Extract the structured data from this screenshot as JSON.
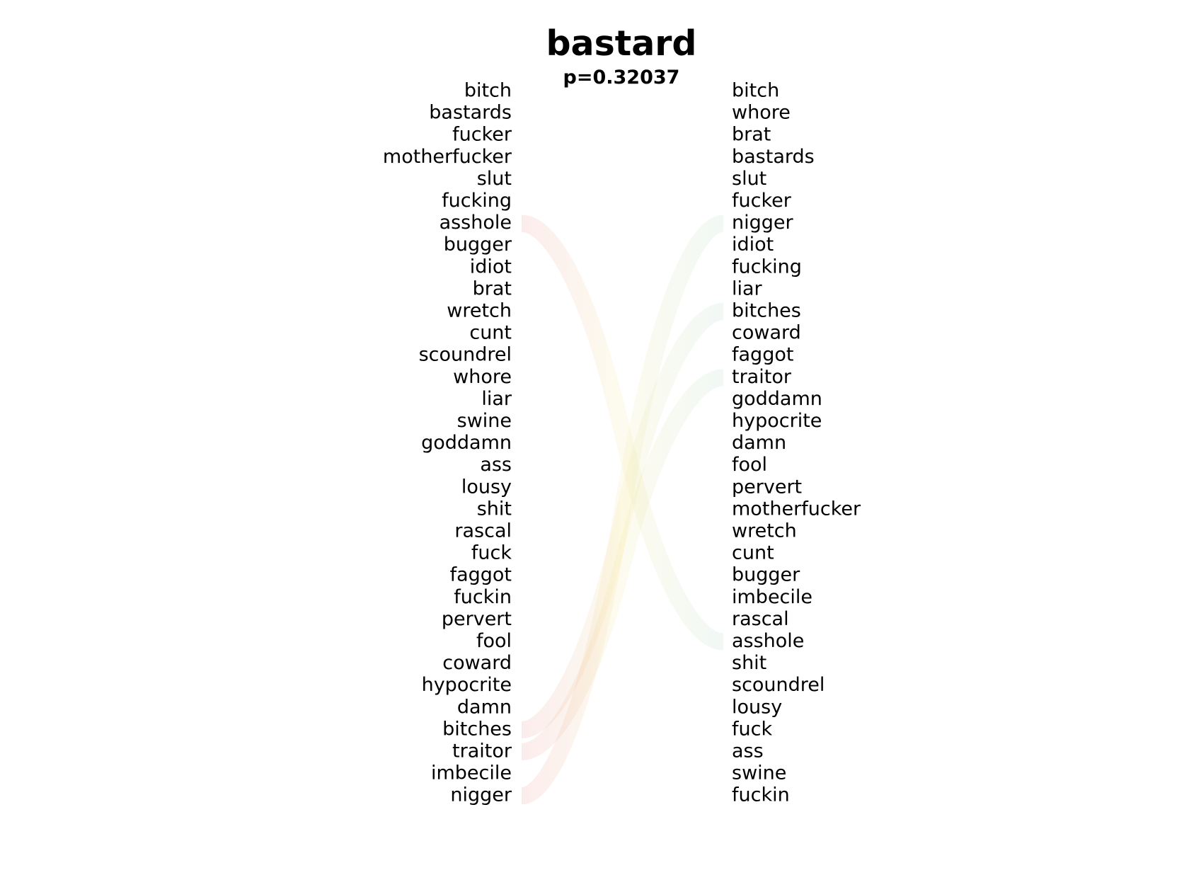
{
  "chart_data": {
    "type": "bump",
    "title": "bastard",
    "subtitle": "p=0.32037",
    "left_ranking": [
      "bitch",
      "bastards",
      "fucker",
      "motherfucker",
      "slut",
      "fucking",
      "asshole",
      "bugger",
      "idiot",
      "brat",
      "wretch",
      "cunt",
      "scoundrel",
      "whore",
      "liar",
      "swine",
      "goddamn",
      "ass",
      "lousy",
      "shit",
      "rascal",
      "fuck",
      "faggot",
      "fuckin",
      "pervert",
      "fool",
      "coward",
      "hypocrite",
      "damn",
      "bitches",
      "traitor",
      "imbecile",
      "nigger"
    ],
    "right_ranking": [
      "bitch",
      "whore",
      "brat",
      "bastards",
      "slut",
      "fucker",
      "nigger",
      "idiot",
      "fucking",
      "liar",
      "bitches",
      "coward",
      "faggot",
      "traitor",
      "goddamn",
      "hypocrite",
      "damn",
      "fool",
      "pervert",
      "motherfucker",
      "wretch",
      "cunt",
      "bugger",
      "imbecile",
      "rascal",
      "asshole",
      "shit",
      "scoundrel",
      "lousy",
      "fuck",
      "ass",
      "swine",
      "fuckin"
    ],
    "highlighted_links": [
      {
        "word": "asshole",
        "left_rank": 7,
        "right_rank": 26,
        "direction": "down"
      },
      {
        "word": "bitches",
        "left_rank": 30,
        "right_rank": 11,
        "direction": "up"
      },
      {
        "word": "traitor",
        "left_rank": 31,
        "right_rank": 14,
        "direction": "up"
      },
      {
        "word": "nigger",
        "left_rank": 33,
        "right_rank": 7,
        "direction": "up"
      }
    ],
    "colors": {
      "down": "#e06666",
      "up": "#8fc7a8",
      "mid": "#f0e07a",
      "text": "#000000"
    }
  }
}
